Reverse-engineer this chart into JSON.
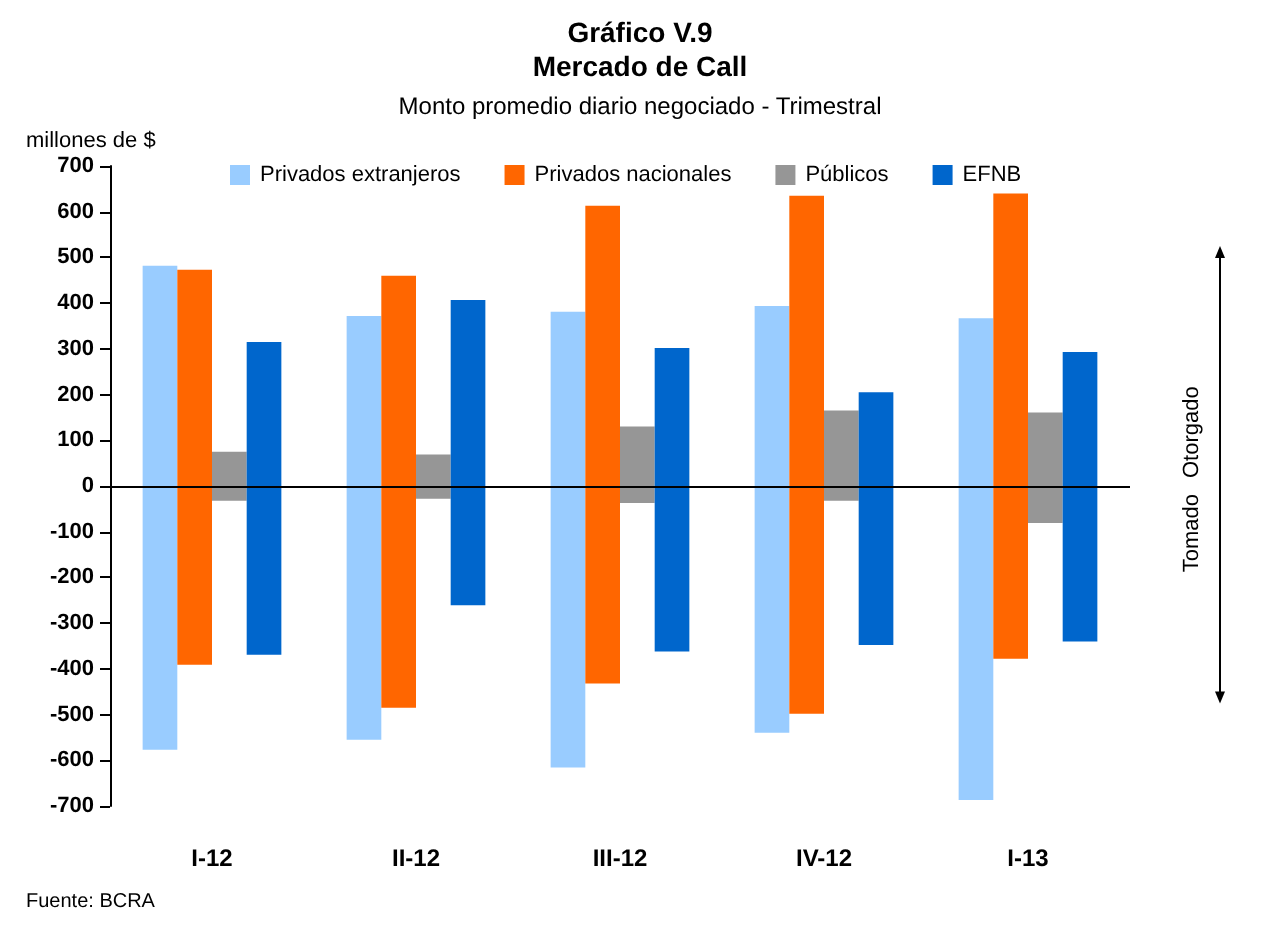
{
  "chart_data": {
    "type": "bar",
    "title": "Gráfico V.9\nMercado de Call",
    "subtitle": "Monto promedio diario negociado - Trimestral",
    "ylabel": "millones de $",
    "categories": [
      "I-12",
      "II-12",
      "III-12",
      "IV-12",
      "I-13"
    ],
    "series": [
      {
        "name": "Privados extranjeros",
        "color": "#99ccff",
        "base": [
          -577,
          -555,
          -616,
          -540,
          -687
        ],
        "values": [
          1059,
          927,
          997,
          934,
          1054
        ]
      },
      {
        "name": "Privados nacionales",
        "color": "#ff6600",
        "base": [
          -391,
          -485,
          -432,
          -498,
          -378
        ],
        "values": [
          864,
          945,
          1045,
          1133,
          1018
        ]
      },
      {
        "name": "Públicos",
        "color": "#969696",
        "base": [
          -32,
          -28,
          -37,
          -32,
          -81
        ],
        "values": [
          107,
          97,
          167,
          197,
          242
        ]
      },
      {
        "name": "EFNB",
        "color": "#0066cc",
        "base": [
          -369,
          -261,
          -362,
          -348,
          -340
        ],
        "values": [
          684,
          668,
          664,
          553,
          633
        ]
      }
    ],
    "ylim": [
      -700,
      700
    ],
    "yticks": [
      -700,
      -600,
      -500,
      -400,
      -300,
      -200,
      -100,
      0,
      100,
      200,
      300,
      400,
      500,
      600,
      700
    ],
    "ref_lines": [
      {
        "axis": "y",
        "value": 0,
        "color": "#000000"
      }
    ],
    "grid": false,
    "legend": "top",
    "annotations": [
      "Otorgado",
      "Tomado",
      "Fuente: BCRA"
    ]
  }
}
